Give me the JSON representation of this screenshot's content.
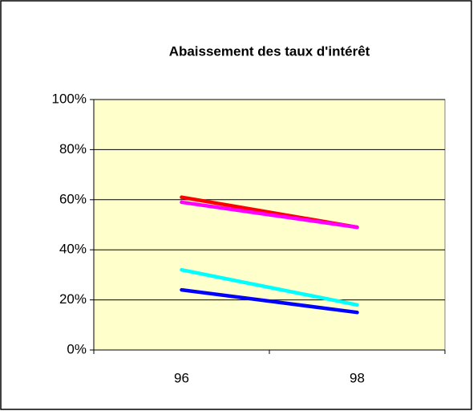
{
  "chart_data": {
    "type": "line",
    "title": "Abaissement des taux d'intérêt",
    "categories": [
      "96",
      "98"
    ],
    "series": [
      {
        "color": "#ff0000",
        "values": [
          61,
          49
        ]
      },
      {
        "color": "#ff00ff",
        "values": [
          59,
          49
        ]
      },
      {
        "color": "#00ffff",
        "values": [
          32,
          18
        ]
      },
      {
        "color": "#0000ff",
        "values": [
          24,
          15
        ]
      }
    ],
    "ylim": [
      0,
      100
    ],
    "yticks": [
      {
        "value": 0,
        "label": "0%"
      },
      {
        "value": 20,
        "label": "20%"
      },
      {
        "value": 40,
        "label": "40%"
      },
      {
        "value": 60,
        "label": "60%"
      },
      {
        "value": 80,
        "label": "80%"
      },
      {
        "value": 100,
        "label": "100%"
      }
    ],
    "grid": true,
    "plot_background": "#ffffcc"
  }
}
